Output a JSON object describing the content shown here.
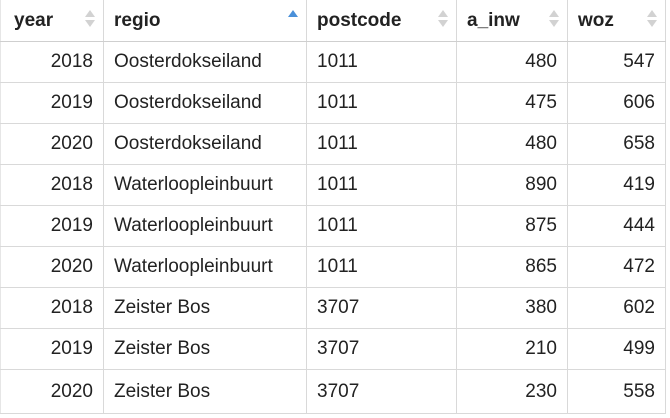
{
  "table": {
    "columns": [
      {
        "label": "year",
        "sorted": false
      },
      {
        "label": "regio",
        "sorted": true
      },
      {
        "label": "postcode",
        "sorted": false
      },
      {
        "label": "a_inw",
        "sorted": false
      },
      {
        "label": "woz",
        "sorted": false
      }
    ],
    "rows": [
      [
        "2018",
        "Oosterdokseiland",
        "1011",
        "480",
        "547"
      ],
      [
        "2019",
        "Oosterdokseiland",
        "1011",
        "475",
        "606"
      ],
      [
        "2020",
        "Oosterdokseiland",
        "1011",
        "480",
        "658"
      ],
      [
        "2018",
        "Waterloopleinbuurt",
        "1011",
        "890",
        "419"
      ],
      [
        "2019",
        "Waterloopleinbuurt",
        "1011",
        "875",
        "444"
      ],
      [
        "2020",
        "Waterloopleinbuurt",
        "1011",
        "865",
        "472"
      ],
      [
        "2018",
        "Zeister Bos",
        "3707",
        "380",
        "602"
      ],
      [
        "2019",
        "Zeister Bos",
        "3707",
        "210",
        "499"
      ],
      [
        "2020",
        "Zeister Bos",
        "3707",
        "230",
        "558"
      ]
    ]
  },
  "colors": {
    "sort_active": "#4a90d9",
    "sort_inactive": "#d2d2d2",
    "grid_line": "#d9d9d9"
  }
}
